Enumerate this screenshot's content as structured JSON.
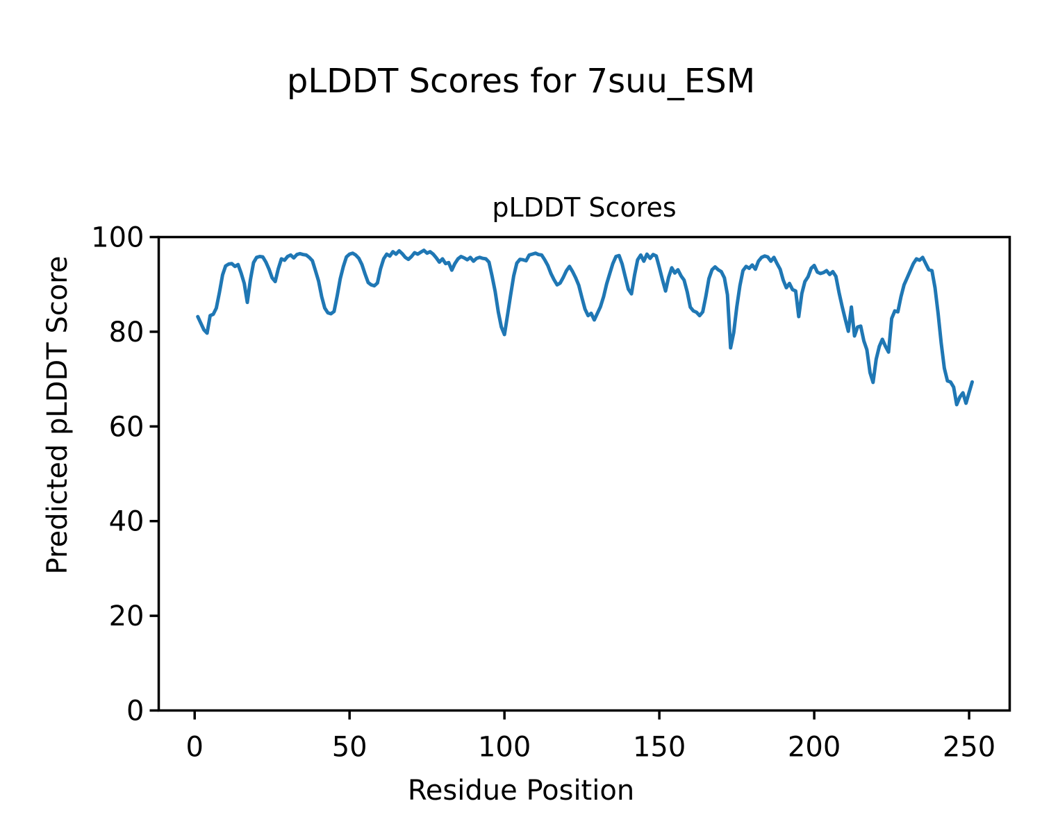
{
  "chart_data": {
    "type": "line",
    "title": "pLDDT Scores for 7suu_ESM",
    "axes_title": "pLDDT Scores",
    "xlabel": "Residue Position",
    "ylabel": "Predicted pLDDT Score",
    "x_start": 1,
    "x_step": 1,
    "values": [
      83.2,
      81.8,
      80.4,
      79.7,
      83.4,
      83.7,
      85.0,
      88.3,
      92.0,
      93.9,
      94.3,
      94.4,
      93.8,
      94.2,
      92.4,
      90.2,
      86.2,
      91.0,
      94.6,
      95.7,
      95.9,
      95.8,
      94.7,
      93.2,
      91.4,
      90.6,
      93.3,
      95.4,
      95.1,
      95.9,
      96.2,
      95.6,
      96.3,
      96.5,
      96.3,
      96.2,
      95.7,
      95.0,
      92.9,
      90.7,
      87.4,
      85.0,
      84.0,
      83.8,
      84.3,
      87.6,
      91.2,
      93.8,
      95.8,
      96.4,
      96.6,
      96.2,
      95.5,
      94.2,
      92.2,
      90.4,
      89.9,
      89.7,
      90.3,
      93.3,
      95.4,
      96.4,
      96.0,
      96.9,
      96.4,
      97.1,
      96.5,
      95.7,
      95.3,
      95.9,
      96.7,
      96.4,
      96.8,
      97.2,
      96.6,
      96.9,
      96.4,
      95.6,
      94.7,
      95.4,
      94.4,
      94.6,
      93.0,
      94.4,
      95.4,
      95.9,
      95.6,
      95.2,
      95.7,
      94.9,
      95.5,
      95.7,
      95.5,
      95.4,
      94.7,
      91.8,
      88.5,
      84.2,
      81.0,
      79.4,
      83.5,
      87.8,
      91.8,
      94.5,
      95.3,
      95.2,
      95.0,
      96.2,
      96.4,
      96.6,
      96.3,
      96.2,
      95.2,
      94.0,
      92.3,
      91.0,
      89.9,
      90.3,
      91.5,
      92.9,
      93.8,
      92.7,
      91.4,
      89.8,
      87.2,
      84.8,
      83.4,
      83.9,
      82.5,
      83.9,
      85.3,
      87.4,
      90.1,
      92.3,
      94.4,
      95.9,
      96.1,
      94.3,
      91.6,
      89.0,
      88.0,
      92.0,
      95.2,
      96.2,
      94.9,
      96.4,
      95.5,
      96.3,
      96.0,
      93.6,
      91.0,
      88.6,
      91.5,
      93.5,
      92.4,
      93.1,
      91.8,
      90.9,
      88.4,
      85.2,
      84.4,
      84.1,
      83.4,
      84.2,
      87.4,
      91.2,
      93.1,
      93.7,
      93.1,
      92.7,
      91.4,
      87.8,
      76.6,
      79.8,
      85.2,
      89.7,
      92.9,
      93.8,
      93.4,
      94.1,
      93.2,
      94.9,
      95.7,
      96.0,
      95.8,
      94.9,
      95.7,
      94.4,
      93.2,
      90.9,
      89.3,
      90.2,
      88.9,
      88.6,
      83.2,
      88.1,
      90.6,
      91.6,
      93.4,
      94.0,
      92.6,
      92.3,
      92.5,
      92.9,
      92.1,
      92.7,
      91.7,
      88.3,
      85.4,
      82.7,
      80.1,
      85.2,
      79.1,
      81.0,
      81.2,
      78.1,
      76.2,
      71.4,
      69.3,
      74.2,
      76.9,
      78.4,
      76.9,
      75.7,
      82.8,
      84.4,
      84.2,
      87.4,
      89.9,
      91.4,
      92.9,
      94.4,
      95.4,
      95.1,
      95.7,
      94.4,
      93.1,
      92.9,
      89.3,
      83.8,
      77.6,
      72.3,
      69.6,
      69.4,
      68.3,
      64.6,
      66.2,
      67.1,
      64.9,
      67.2,
      69.4
    ],
    "xticks": [
      0,
      50,
      100,
      150,
      200,
      250
    ],
    "yticks": [
      0,
      20,
      40,
      60,
      80,
      100
    ],
    "xlim": [
      -11.6,
      263.1
    ],
    "ylim": [
      0,
      100
    ],
    "grid": false,
    "legend": null,
    "line_color": "#1f77b4",
    "axis_color": "#000000",
    "background_color": "#ffffff"
  }
}
